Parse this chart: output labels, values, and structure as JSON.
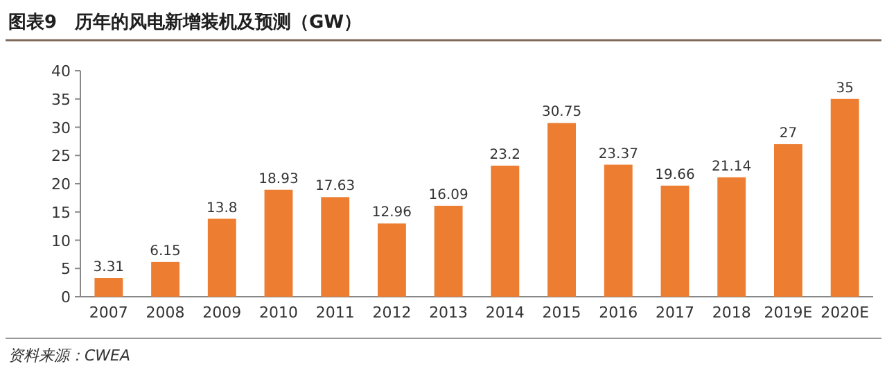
{
  "chart_data": {
    "type": "bar",
    "title": "图表9　历年的风电新增装机及预测（GW）",
    "categories": [
      "2007",
      "2008",
      "2009",
      "2010",
      "2011",
      "2012",
      "2013",
      "2014",
      "2015",
      "2016",
      "2017",
      "2018",
      "2019E",
      "2020E"
    ],
    "values": [
      3.31,
      6.15,
      13.8,
      18.93,
      17.63,
      12.96,
      16.09,
      23.2,
      30.75,
      23.37,
      19.66,
      21.14,
      27,
      35
    ],
    "color": "#ed7d31",
    "ylim": [
      0,
      40
    ],
    "yticks": [
      0,
      5,
      10,
      15,
      20,
      25,
      30,
      35,
      40
    ],
    "data_labels": true,
    "annotations": [
      "资料来源：CWEA"
    ]
  }
}
